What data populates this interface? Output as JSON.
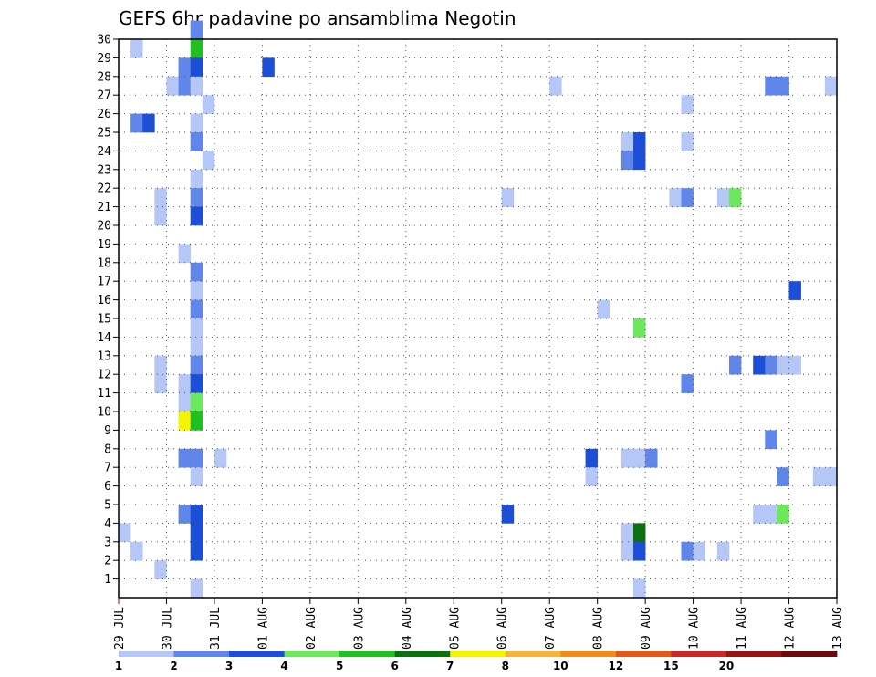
{
  "chart_data": {
    "type": "heatmap",
    "title": "GEFS 6hr padavine po ansamblima Negotin",
    "xlabel": "",
    "ylabel": "",
    "x_ticks": [
      "29 JUL",
      "30 JUL",
      "31 JUL",
      "01 AUG",
      "02 AUG",
      "03 AUG",
      "04 AUG",
      "05 AUG",
      "06 AUG",
      "07 AUG",
      "08 AUG",
      "09 AUG",
      "10 AUG",
      "11 AUG",
      "12 AUG",
      "13 AUG"
    ],
    "y_ticks": [
      1,
      2,
      3,
      4,
      5,
      6,
      7,
      8,
      9,
      10,
      11,
      12,
      13,
      14,
      15,
      16,
      17,
      18,
      19,
      20,
      21,
      22,
      23,
      24,
      25,
      26,
      27,
      28,
      29,
      30
    ],
    "xlim": [
      0,
      60
    ],
    "ylim": [
      0,
      30
    ],
    "grid": true,
    "colorbar": {
      "levels": [
        1,
        2,
        3,
        4,
        5,
        6,
        7,
        8,
        10,
        12,
        15,
        20
      ],
      "labels": [
        "1",
        "2",
        "3",
        "4",
        "5",
        "6",
        "7",
        "8",
        "10",
        "12",
        "15",
        "20"
      ],
      "colors": [
        "#b4c7f6",
        "#5f86e8",
        "#1c4ed8",
        "#6ce85c",
        "#20c020",
        "#0c7010",
        "#f4f400",
        "#f6b43c",
        "#f08c1c",
        "#e2581a",
        "#c82828",
        "#961414",
        "#6c0a0a"
      ]
    },
    "cells": [
      [
        0,
        3,
        1
      ],
      [
        1,
        2,
        1
      ],
      [
        3,
        12,
        1
      ],
      [
        3,
        11,
        1
      ],
      [
        3,
        21,
        1
      ],
      [
        1,
        29,
        1
      ],
      [
        1,
        25,
        2
      ],
      [
        2,
        25,
        3
      ],
      [
        3,
        20,
        1
      ],
      [
        3,
        1,
        1
      ],
      [
        4,
        27,
        1
      ],
      [
        5,
        28,
        2
      ],
      [
        5,
        27,
        2
      ],
      [
        5,
        18,
        1
      ],
      [
        5,
        11,
        1
      ],
      [
        5,
        10,
        1
      ],
      [
        5,
        9,
        7
      ],
      [
        5,
        7,
        2
      ],
      [
        5,
        4,
        2
      ],
      [
        6,
        30,
        2
      ],
      [
        6,
        29,
        5
      ],
      [
        6,
        28,
        3
      ],
      [
        6,
        27,
        1
      ],
      [
        6,
        25,
        1
      ],
      [
        6,
        24,
        2
      ],
      [
        6,
        22,
        1
      ],
      [
        6,
        21,
        2
      ],
      [
        6,
        20,
        3
      ],
      [
        6,
        17,
        2
      ],
      [
        6,
        16,
        1
      ],
      [
        6,
        15,
        2
      ],
      [
        6,
        14,
        1
      ],
      [
        6,
        13,
        1
      ],
      [
        6,
        12,
        2
      ],
      [
        6,
        11,
        3
      ],
      [
        6,
        10,
        4
      ],
      [
        6,
        9,
        5
      ],
      [
        6,
        7,
        2
      ],
      [
        6,
        6,
        1
      ],
      [
        6,
        4,
        3
      ],
      [
        6,
        3,
        3
      ],
      [
        6,
        2,
        3
      ],
      [
        6,
        0,
        1
      ],
      [
        7,
        26,
        1
      ],
      [
        7,
        23,
        1
      ],
      [
        8,
        7,
        1
      ],
      [
        12,
        28,
        3
      ],
      [
        32,
        21,
        1
      ],
      [
        32,
        4,
        3
      ],
      [
        36,
        27,
        1
      ],
      [
        39,
        7,
        3
      ],
      [
        39,
        6,
        1
      ],
      [
        40,
        15,
        1
      ],
      [
        42,
        24,
        1
      ],
      [
        42,
        23,
        2
      ],
      [
        42,
        7,
        1
      ],
      [
        42,
        3,
        1
      ],
      [
        42,
        2,
        1
      ],
      [
        43,
        24,
        3
      ],
      [
        43,
        23,
        3
      ],
      [
        43,
        14,
        4
      ],
      [
        43,
        7,
        1
      ],
      [
        43,
        3,
        6
      ],
      [
        43,
        2,
        3
      ],
      [
        43,
        0,
        1
      ],
      [
        44,
        7,
        2
      ],
      [
        46,
        21,
        1
      ],
      [
        47,
        21,
        2
      ],
      [
        47,
        11,
        2
      ],
      [
        47,
        26,
        1
      ],
      [
        47,
        24,
        1
      ],
      [
        47,
        2,
        2
      ],
      [
        48,
        2,
        1
      ],
      [
        50,
        21,
        1
      ],
      [
        50,
        2,
        1
      ],
      [
        51,
        21,
        4
      ],
      [
        51,
        12,
        2
      ],
      [
        53,
        12,
        3
      ],
      [
        53,
        4,
        1
      ],
      [
        54,
        27,
        2
      ],
      [
        54,
        12,
        2
      ],
      [
        54,
        8,
        2
      ],
      [
        54,
        4,
        1
      ],
      [
        55,
        27,
        2
      ],
      [
        55,
        12,
        1
      ],
      [
        55,
        6,
        2
      ],
      [
        55,
        4,
        4
      ],
      [
        56,
        16,
        3
      ],
      [
        56,
        12,
        1
      ],
      [
        58,
        6,
        1
      ],
      [
        59,
        27,
        1
      ],
      [
        59,
        6,
        1
      ]
    ]
  }
}
